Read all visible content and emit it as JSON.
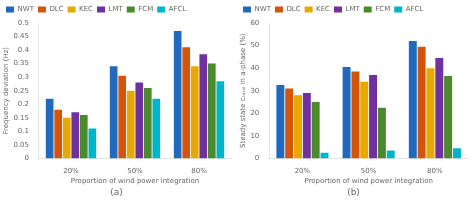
{
  "chart_data": [
    {
      "type": "bar",
      "title": "(a)",
      "xlabel": "Proportion of wind power integration",
      "ylabel": "Frequency deviation (Hz)",
      "categories": [
        "20%",
        "50%",
        "80%"
      ],
      "series": [
        {
          "name": "NWT",
          "color": "#1f6abf",
          "values": [
            0.22,
            0.34,
            0.47
          ]
        },
        {
          "name": "DLC",
          "color": "#d4550a",
          "values": [
            0.18,
            0.305,
            0.41
          ]
        },
        {
          "name": "KEC",
          "color": "#e8a800",
          "values": [
            0.15,
            0.25,
            0.34
          ]
        },
        {
          "name": "LMT",
          "color": "#7030a0",
          "values": [
            0.17,
            0.28,
            0.385
          ]
        },
        {
          "name": "FCM",
          "color": "#4a8a2a",
          "values": [
            0.16,
            0.26,
            0.35
          ]
        },
        {
          "name": "AFCL",
          "color": "#00b4cc",
          "values": [
            0.11,
            0.22,
            0.285
          ]
        }
      ],
      "ylim": [
        0,
        0.5
      ],
      "yticks": [
        0,
        0.05,
        0.1,
        0.15,
        0.2,
        0.25,
        0.3,
        0.35,
        0.4,
        0.45,
        0.5
      ],
      "grid": false,
      "legend": "upper left"
    },
    {
      "type": "bar",
      "title": "(b)",
      "xlabel": "Proportion of wind power integration",
      "ylabel": "Steady state cₜₒₜₐₗ in a-phase (%)",
      "categories": [
        "20%",
        "50%",
        "80%"
      ],
      "series": [
        {
          "name": "NWT",
          "color": "#1f6abf",
          "values": [
            32.5,
            40.5,
            52.0
          ]
        },
        {
          "name": "DLC",
          "color": "#d4550a",
          "values": [
            31.0,
            38.5,
            49.5
          ]
        },
        {
          "name": "KEC",
          "color": "#e8a800",
          "values": [
            28.0,
            34.0,
            40.0
          ]
        },
        {
          "name": "LMT",
          "color": "#7030a0",
          "values": [
            29.0,
            37.0,
            44.5
          ]
        },
        {
          "name": "FCM",
          "color": "#4a8a2a",
          "values": [
            25.0,
            22.5,
            36.5
          ]
        },
        {
          "name": "AFCL",
          "color": "#00b4cc",
          "values": [
            2.5,
            3.5,
            4.5
          ]
        }
      ],
      "ylim": [
        0,
        60
      ],
      "yticks": [
        0,
        10,
        20,
        30,
        40,
        50,
        60
      ],
      "grid": false,
      "legend": "upper left"
    }
  ]
}
